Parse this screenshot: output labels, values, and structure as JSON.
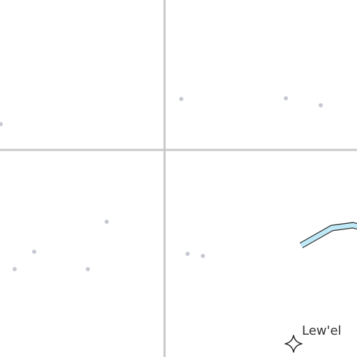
{
  "map": {
    "colors": {
      "background": "#ffffff",
      "grid_line": "#c8c8c8",
      "point": "#c6c9d1",
      "river_fill": "#bfe9f7",
      "river_stroke": "#2b2b2b",
      "label": "#333333",
      "marker_stroke": "#2b2b2b"
    },
    "places": [
      {
        "name": "Lew'el",
        "icon": "four-point-star-icon"
      }
    ]
  }
}
